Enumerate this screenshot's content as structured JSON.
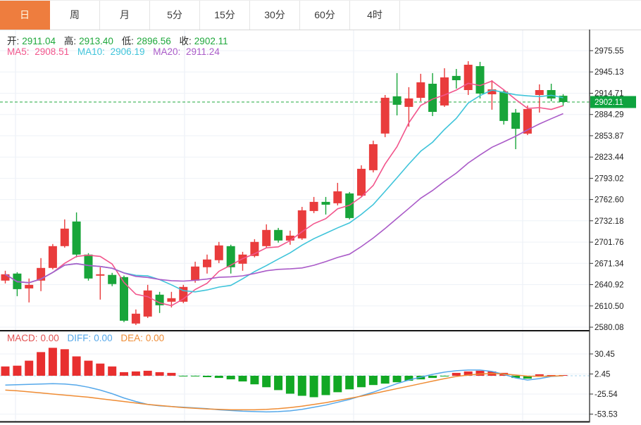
{
  "tabs": [
    {
      "label": "日",
      "active": true
    },
    {
      "label": "周",
      "active": false
    },
    {
      "label": "月",
      "active": false
    },
    {
      "label": "5分",
      "active": false
    },
    {
      "label": "15分",
      "active": false
    },
    {
      "label": "30分",
      "active": false
    },
    {
      "label": "60分",
      "active": false
    },
    {
      "label": "4时",
      "active": false
    }
  ],
  "ohlc_bar": {
    "open_label": "开:",
    "open": "2911.04",
    "high_label": "高:",
    "high": "2913.40",
    "low_label": "低:",
    "low": "2896.56",
    "close_label": "收:",
    "close": "2902.11"
  },
  "ma_bar": {
    "ma5_label": "MA5:",
    "ma5": "2908.51",
    "ma10_label": "MA10:",
    "ma10": "2906.19",
    "ma20_label": "MA20:",
    "ma20": "2911.24"
  },
  "macd_bar": {
    "macd_label": "MACD:",
    "macd": "0.00",
    "diff_label": "DIFF:",
    "diff": "0.00",
    "dea_label": "DEA:",
    "dea": "0.00"
  },
  "colors": {
    "accent_orange": "#ee7d3e",
    "candle_up": "#e93c3c",
    "candle_down": "#18a53a",
    "value_green": "#1fa83c",
    "ma5": "#f2558c",
    "ma10": "#3fc4da",
    "ma20": "#aa5bc8",
    "diff_line": "#55a8ea",
    "dea_line": "#ef8c34",
    "macd_up": "#e82f2f",
    "macd_down": "#12a824",
    "badge_green": "#0ea33e",
    "grid": "#eef2f7",
    "vgrid": "#e9eef5",
    "axis_line": "#3a3a3a",
    "border_dark": "#141414",
    "border_light": "#d8d8d8",
    "dashed_last": "#1fa83c",
    "dashed_zero": "#a8d4ee",
    "macd_label_red": "#e25151"
  },
  "chart_data": {
    "type": "candlestick",
    "title": "",
    "legend": [
      "MA5",
      "MA10",
      "MA20",
      "MACD",
      "DIFF",
      "DEA"
    ],
    "last_price": "2902.11",
    "price_axis": {
      "max": 2975.55,
      "min": 2580.08,
      "ticks": [
        2975.55,
        2945.13,
        2914.71,
        2884.29,
        2853.87,
        2823.44,
        2793.02,
        2762.6,
        2732.18,
        2701.76,
        2671.34,
        2640.92,
        2610.5,
        2580.08
      ]
    },
    "x_gridlines": [
      22,
      262,
      502,
      742
    ],
    "ma_periods": [
      5,
      10,
      20
    ],
    "candles": [
      [
        2646.7,
        2660.8,
        2642.7,
        2655.8
      ],
      [
        2656.8,
        2658.8,
        2624.5,
        2634.6
      ],
      [
        2635.6,
        2649.7,
        2615.5,
        2640.7
      ],
      [
        2646.7,
        2678.9,
        2631.6,
        2664.8
      ],
      [
        2664.8,
        2699.0,
        2662.8,
        2696.0
      ],
      [
        2696.0,
        2734.2,
        2693.9,
        2721.1
      ],
      [
        2731.2,
        2744.2,
        2679.9,
        2683.9
      ],
      [
        2683.9,
        2685.9,
        2646.7,
        2649.7
      ],
      [
        2653.8,
        2665.8,
        2619.5,
        2655.8
      ],
      [
        2654.8,
        2657.8,
        2638.7,
        2641.7
      ],
      [
        2651.7,
        2653.8,
        2587.3,
        2589.3
      ],
      [
        2585.3,
        2605.4,
        2583.2,
        2599.4
      ],
      [
        2595.3,
        2640.7,
        2593.3,
        2632.6
      ],
      [
        2626.6,
        2630.6,
        2600.4,
        2611.5
      ],
      [
        2616.5,
        2630.6,
        2608.4,
        2621.5
      ],
      [
        2616.5,
        2640.7,
        2614.5,
        2637.6
      ],
      [
        2646.7,
        2673.8,
        2643.7,
        2666.8
      ],
      [
        2665.8,
        2683.9,
        2656.8,
        2676.9
      ],
      [
        2675.9,
        2702.0,
        2671.8,
        2697.0
      ],
      [
        2696.0,
        2698.0,
        2656.8,
        2665.8
      ],
      [
        2670.8,
        2687.9,
        2660.8,
        2683.9
      ],
      [
        2681.9,
        2706.0,
        2679.9,
        2702.0
      ],
      [
        2696.0,
        2727.2,
        2693.9,
        2719.1
      ],
      [
        2719.1,
        2722.1,
        2701.0,
        2704.0
      ],
      [
        2704.0,
        2718.1,
        2698.0,
        2711.0
      ],
      [
        2707.0,
        2752.2,
        2705.0,
        2747.2
      ],
      [
        2746.2,
        2766.3,
        2743.2,
        2759.3
      ],
      [
        2759.3,
        2766.3,
        2741.2,
        2755.3
      ],
      [
        2757.3,
        2786.5,
        2754.3,
        2774.4
      ],
      [
        2771.4,
        2773.4,
        2734.2,
        2736.2
      ],
      [
        2768.3,
        2811.6,
        2766.3,
        2806.6
      ],
      [
        2804.6,
        2846.8,
        2801.5,
        2841.8
      ],
      [
        2857.0,
        2912.2,
        2851.9,
        2908.2
      ],
      [
        2910.2,
        2943.4,
        2883.0,
        2898.1
      ],
      [
        2895.1,
        2923.3,
        2866.9,
        2907.2
      ],
      [
        2908.2,
        2942.4,
        2903.1,
        2930.3
      ],
      [
        2928.3,
        2943.4,
        2882.0,
        2888.0
      ],
      [
        2897.1,
        2950.4,
        2895.1,
        2937.3
      ],
      [
        2939.4,
        2949.4,
        2921.3,
        2933.3
      ],
      [
        2919.2,
        2960.5,
        2912.2,
        2955.4
      ],
      [
        2953.4,
        2959.5,
        2907.2,
        2914.2
      ],
      [
        2913.2,
        2933.3,
        2891.1,
        2920.2
      ],
      [
        2917.2,
        2919.2,
        2869.9,
        2875.0
      ],
      [
        2887.0,
        2892.1,
        2834.7,
        2863.9
      ],
      [
        2856.9,
        2897.1,
        2854.8,
        2892.1
      ],
      [
        2912.2,
        2927.3,
        2887.0,
        2919.2
      ],
      [
        2919.2,
        2928.3,
        2903.1,
        2907.2
      ],
      [
        2911.04,
        2913.4,
        2896.56,
        2902.11
      ]
    ],
    "macd": {
      "axis_ticks": [
        30.45,
        2.45,
        -25.54,
        -53.53
      ],
      "histogram": [
        13,
        14,
        21,
        33,
        39,
        37,
        27,
        21,
        17,
        13,
        5,
        6,
        7,
        5,
        4,
        -1,
        -1,
        -2,
        -3,
        -5,
        -8,
        -12,
        -16,
        -20,
        -25,
        -28,
        -30,
        -27,
        -23,
        -19,
        -16,
        -13,
        -11,
        -9,
        -7,
        -5,
        -3,
        -1,
        4,
        6,
        7,
        6,
        4,
        -3,
        -4,
        2,
        1,
        0
      ],
      "diff": [
        -13,
        -12.5,
        -12,
        -11.5,
        -11,
        -11.5,
        -13,
        -16,
        -20,
        -25,
        -31,
        -36,
        -40,
        -42,
        -43,
        -44,
        -45,
        -46,
        -47.5,
        -48.5,
        -49.5,
        -50,
        -50.5,
        -50,
        -49,
        -47,
        -44,
        -41,
        -37,
        -33,
        -28,
        -23,
        -17,
        -11,
        -6,
        -2,
        2,
        5,
        7,
        8,
        8,
        6,
        2,
        -3,
        -6,
        -4,
        -1,
        0
      ],
      "dea": [
        -20,
        -21,
        -22.5,
        -24,
        -25.5,
        -27,
        -28.5,
        -30,
        -32,
        -34,
        -36,
        -38,
        -40,
        -41.5,
        -43,
        -44.5,
        -45.5,
        -46.5,
        -47,
        -47.5,
        -47.5,
        -47.5,
        -47,
        -46,
        -44.5,
        -42.5,
        -40,
        -37.5,
        -34.5,
        -31.5,
        -28.5,
        -25,
        -21.5,
        -18,
        -14.5,
        -11,
        -7.5,
        -4,
        -1,
        1,
        2.5,
        3,
        2.5,
        1,
        -0.5,
        -1,
        -0.5,
        0
      ]
    }
  }
}
